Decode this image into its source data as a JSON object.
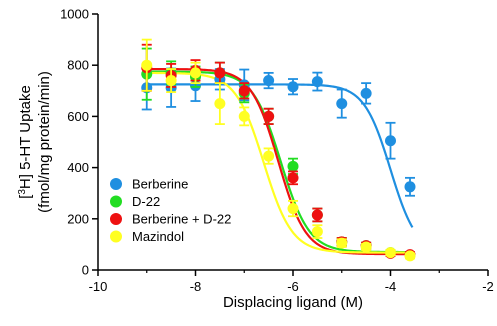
{
  "chart_data": {
    "type": "scatter",
    "title": "",
    "xlabel": "Displacing ligand (M)",
    "ylabel_line1": "[3H] 5-HT Uptake",
    "ylabel_line2": "(fmol/mg protein/min)",
    "xlim": [
      -10,
      -2
    ],
    "ylim": [
      0,
      1000
    ],
    "x_ticks": [
      -10,
      -8,
      -6,
      -4,
      -2
    ],
    "x_tick_labels": [
      "-10",
      "-8",
      "-6",
      "-4",
      "-2"
    ],
    "y_ticks": [
      0,
      200,
      400,
      600,
      800,
      1000
    ],
    "y_tick_labels": [
      "0",
      "200",
      "400",
      "600",
      "800",
      "1000"
    ],
    "legend_position": "bottom-left",
    "grid": false,
    "series": [
      {
        "name": "Berberine",
        "color": "#1f8fe0",
        "fit": {
          "top": 725,
          "bottom": 60,
          "logIC50": -4.0,
          "hill": 1.6
        },
        "points": [
          {
            "x": -9.0,
            "y": 712,
            "err": 85
          },
          {
            "x": -8.5,
            "y": 712,
            "err": 75
          },
          {
            "x": -8.0,
            "y": 720,
            "err": 60
          },
          {
            "x": -7.5,
            "y": 745,
            "err": 40
          },
          {
            "x": -7.0,
            "y": 723,
            "err": 60
          },
          {
            "x": -6.5,
            "y": 740,
            "err": 30
          },
          {
            "x": -6.0,
            "y": 716,
            "err": 30
          },
          {
            "x": -5.5,
            "y": 736,
            "err": 35
          },
          {
            "x": -5.0,
            "y": 650,
            "err": 55
          },
          {
            "x": -4.5,
            "y": 690,
            "err": 40
          },
          {
            "x": -4.0,
            "y": 505,
            "err": 70
          },
          {
            "x": -3.6,
            "y": 325,
            "err": 35
          }
        ]
      },
      {
        "name": "D-22",
        "color": "#22dd22",
        "fit": {
          "top": 775,
          "bottom": 70,
          "logIC50": -6.25,
          "hill": 1.5
        },
        "points": [
          {
            "x": -9.0,
            "y": 765,
            "err": 100
          },
          {
            "x": -8.5,
            "y": 770,
            "err": 45
          },
          {
            "x": -8.0,
            "y": 755,
            "err": 40
          },
          {
            "x": -7.5,
            "y": 770,
            "err": 40
          },
          {
            "x": -7.0,
            "y": 690,
            "err": 35
          },
          {
            "x": -6.5,
            "y": 600,
            "err": 30
          },
          {
            "x": -6.0,
            "y": 405,
            "err": 30
          },
          {
            "x": -5.5,
            "y": 215,
            "err": 25
          },
          {
            "x": -5.0,
            "y": 110,
            "err": 15
          },
          {
            "x": -4.5,
            "y": 95,
            "err": 12
          },
          {
            "x": -4.0,
            "y": 68,
            "err": 10
          },
          {
            "x": -3.6,
            "y": 58,
            "err": 10
          }
        ]
      },
      {
        "name": "Berberine + D-22",
        "color": "#ee1111",
        "fit": {
          "top": 785,
          "bottom": 62,
          "logIC50": -6.3,
          "hill": 1.55
        },
        "points": [
          {
            "x": -9.0,
            "y": 790,
            "err": 90
          },
          {
            "x": -8.5,
            "y": 760,
            "err": 45
          },
          {
            "x": -8.0,
            "y": 780,
            "err": 40
          },
          {
            "x": -7.5,
            "y": 770,
            "err": 40
          },
          {
            "x": -7.0,
            "y": 700,
            "err": 30
          },
          {
            "x": -6.5,
            "y": 600,
            "err": 30
          },
          {
            "x": -6.0,
            "y": 360,
            "err": 25
          },
          {
            "x": -5.5,
            "y": 215,
            "err": 25
          },
          {
            "x": -5.0,
            "y": 110,
            "err": 15
          },
          {
            "x": -4.5,
            "y": 95,
            "err": 12
          },
          {
            "x": -4.0,
            "y": 65,
            "err": 10
          },
          {
            "x": -3.6,
            "y": 60,
            "err": 10
          }
        ]
      },
      {
        "name": "Mazindol",
        "color": "#ffff22",
        "fit": {
          "top": 770,
          "bottom": 68,
          "logIC50": -6.6,
          "hill": 1.5
        },
        "points": [
          {
            "x": -9.0,
            "y": 800,
            "err": 100
          },
          {
            "x": -8.5,
            "y": 740,
            "err": 45
          },
          {
            "x": -8.0,
            "y": 770,
            "err": 40
          },
          {
            "x": -7.5,
            "y": 650,
            "err": 80
          },
          {
            "x": -7.0,
            "y": 600,
            "err": 35
          },
          {
            "x": -6.5,
            "y": 445,
            "err": 30
          },
          {
            "x": -6.0,
            "y": 240,
            "err": 30
          },
          {
            "x": -5.5,
            "y": 150,
            "err": 25
          },
          {
            "x": -5.0,
            "y": 105,
            "err": 15
          },
          {
            "x": -4.5,
            "y": 90,
            "err": 12
          },
          {
            "x": -4.0,
            "y": 68,
            "err": 10
          },
          {
            "x": -3.6,
            "y": 55,
            "err": 10
          }
        ]
      }
    ]
  }
}
